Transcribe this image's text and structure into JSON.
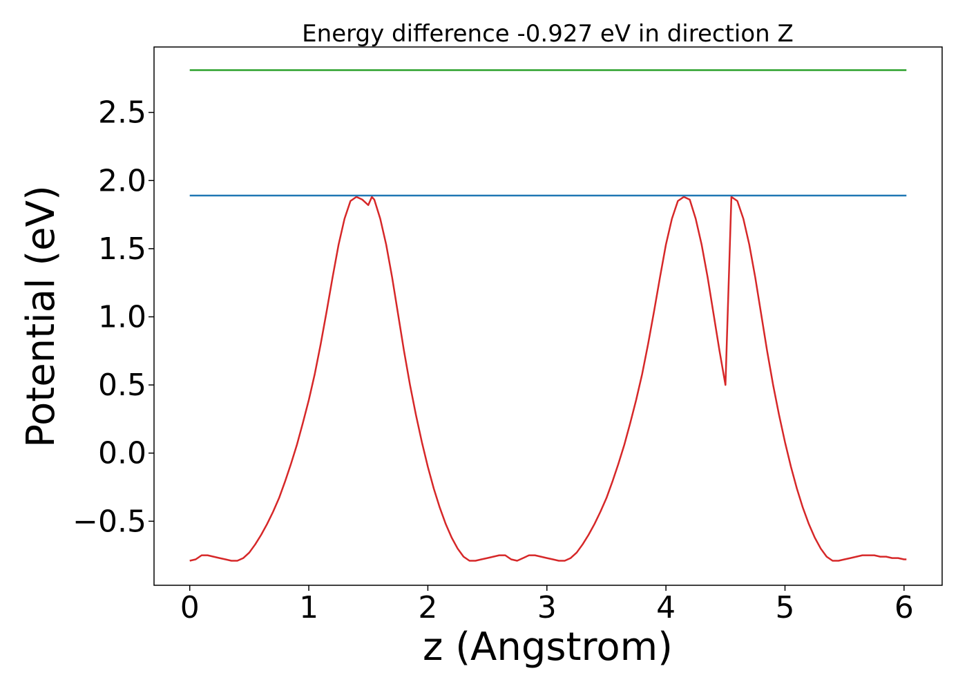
{
  "chart_data": {
    "type": "line",
    "title": "Energy difference -0.927 eV in direction Z",
    "xlabel": "z (Angstrom)",
    "ylabel": "Potential (eV)",
    "xlim": [
      -0.3,
      6.32
    ],
    "ylim": [
      -0.97,
      2.98
    ],
    "xticks": [
      0,
      1,
      2,
      3,
      4,
      5,
      6
    ],
    "xtick_labels": [
      "0",
      "1",
      "2",
      "3",
      "4",
      "5",
      "6"
    ],
    "yticks": [
      -0.5,
      0.0,
      0.5,
      1.0,
      1.5,
      2.0,
      2.5
    ],
    "ytick_labels": [
      "−0.5",
      "0.0",
      "0.5",
      "1.0",
      "1.5",
      "2.0",
      "2.5"
    ],
    "grid": false,
    "series": [
      {
        "color": "#d62728",
        "x": [
          0.0,
          0.05,
          0.1,
          0.15,
          0.2,
          0.25,
          0.3,
          0.35,
          0.4,
          0.45,
          0.5,
          0.55,
          0.6,
          0.65,
          0.7,
          0.75,
          0.8,
          0.85,
          0.9,
          0.95,
          1.0,
          1.05,
          1.1,
          1.15,
          1.2,
          1.25,
          1.3,
          1.35,
          1.4,
          1.45,
          1.5,
          1.53,
          1.55,
          1.6,
          1.65,
          1.7,
          1.75,
          1.8,
          1.85,
          1.9,
          1.95,
          2.0,
          2.05,
          2.1,
          2.15,
          2.2,
          2.25,
          2.3,
          2.35,
          2.4,
          2.45,
          2.5,
          2.55,
          2.6,
          2.65,
          2.7,
          2.75,
          2.8,
          2.85,
          2.9,
          2.95,
          3.0,
          3.05,
          3.1,
          3.15,
          3.2,
          3.25,
          3.3,
          3.35,
          3.4,
          3.45,
          3.5,
          3.55,
          3.6,
          3.65,
          3.7,
          3.75,
          3.8,
          3.85,
          3.9,
          3.95,
          4.0,
          4.05,
          4.1,
          4.15,
          4.2,
          4.25,
          4.3,
          4.35,
          4.4,
          4.45,
          4.5,
          4.55,
          4.6,
          4.65,
          4.7,
          4.75,
          4.8,
          4.85,
          4.9,
          4.95,
          5.0,
          5.05,
          5.1,
          5.15,
          5.2,
          5.25,
          5.3,
          5.35,
          5.4,
          5.45,
          5.5,
          5.55,
          5.6,
          5.65,
          5.7,
          5.75,
          5.8,
          5.85,
          5.9,
          5.95,
          6.0,
          6.02
        ],
        "y": [
          -0.79,
          -0.78,
          -0.75,
          -0.75,
          -0.76,
          -0.77,
          -0.78,
          -0.79,
          -0.79,
          -0.77,
          -0.73,
          -0.67,
          -0.6,
          -0.52,
          -0.43,
          -0.33,
          -0.21,
          -0.08,
          0.06,
          0.22,
          0.39,
          0.58,
          0.8,
          1.04,
          1.29,
          1.53,
          1.72,
          1.85,
          1.88,
          1.86,
          1.82,
          1.88,
          1.86,
          1.72,
          1.53,
          1.29,
          1.02,
          0.75,
          0.5,
          0.28,
          0.08,
          -0.1,
          -0.26,
          -0.4,
          -0.52,
          -0.62,
          -0.7,
          -0.76,
          -0.79,
          -0.79,
          -0.78,
          -0.77,
          -0.76,
          -0.75,
          -0.75,
          -0.78,
          -0.79,
          -0.77,
          -0.75,
          -0.75,
          -0.76,
          -0.77,
          -0.78,
          -0.79,
          -0.79,
          -0.77,
          -0.73,
          -0.67,
          -0.6,
          -0.52,
          -0.43,
          -0.33,
          -0.21,
          -0.08,
          0.06,
          0.22,
          0.39,
          0.58,
          0.8,
          1.04,
          1.29,
          1.53,
          1.72,
          1.85,
          1.88,
          1.86,
          1.72,
          1.53,
          1.29,
          1.02,
          0.75,
          0.5,
          1.88,
          1.85,
          1.72,
          1.53,
          1.29,
          1.02,
          0.75,
          0.5,
          0.28,
          0.08,
          -0.1,
          -0.26,
          -0.4,
          -0.52,
          -0.62,
          -0.7,
          -0.76,
          -0.79,
          -0.79,
          -0.78,
          -0.77,
          -0.76,
          -0.75,
          -0.75,
          -0.75,
          -0.76,
          -0.76,
          -0.77,
          -0.77,
          -0.78,
          -0.78
        ]
      },
      {
        "color": "#1f77b4",
        "x": [
          0.0,
          6.02
        ],
        "y": [
          1.89,
          1.89
        ]
      },
      {
        "color": "#2ca02c",
        "x": [
          0.0,
          6.02
        ],
        "y": [
          2.81,
          2.81
        ]
      }
    ]
  }
}
